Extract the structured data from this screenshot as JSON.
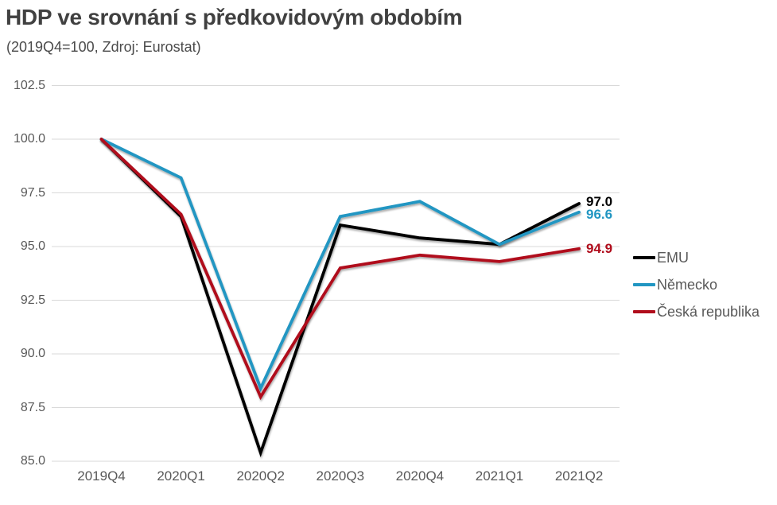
{
  "header": {
    "title": "HDP ve srovnání s předkovidovým obdobím",
    "subtitle": "(2019Q4=100, Zdroj: Eurostat)"
  },
  "chart_data": {
    "type": "line",
    "title": "HDP ve srovnání s předkovidovým obdobím",
    "subtitle": "(2019Q4=100, Zdroj: Eurostat)",
    "xlabel": "",
    "ylabel": "",
    "categories": [
      "2019Q4",
      "2020Q1",
      "2020Q2",
      "2020Q3",
      "2020Q4",
      "2021Q1",
      "2021Q2"
    ],
    "series": [
      {
        "name": "EMU",
        "color": "#000000",
        "values": [
          100.0,
          96.4,
          85.4,
          96.0,
          95.4,
          95.1,
          97.0
        ],
        "end_label": "97.0"
      },
      {
        "name": "Německo",
        "color": "#2196C2",
        "values": [
          100.0,
          98.2,
          88.4,
          96.4,
          97.1,
          95.1,
          96.6
        ],
        "end_label": "96.6"
      },
      {
        "name": "Česká republika",
        "color": "#B00D1C",
        "values": [
          100.0,
          96.5,
          88.0,
          94.0,
          94.6,
          94.3,
          94.9
        ],
        "end_label": "94.9"
      }
    ],
    "y_ticks": [
      "102.5",
      "100.0",
      "97.5",
      "95.0",
      "92.5",
      "90.0",
      "87.5",
      "85.0"
    ],
    "ylim": [
      85.0,
      102.5
    ],
    "grid": true,
    "legend_position": "right",
    "colors": {
      "title_text": "#404040",
      "axis_text": "#595959",
      "gridline": "#d9d9d9"
    }
  }
}
